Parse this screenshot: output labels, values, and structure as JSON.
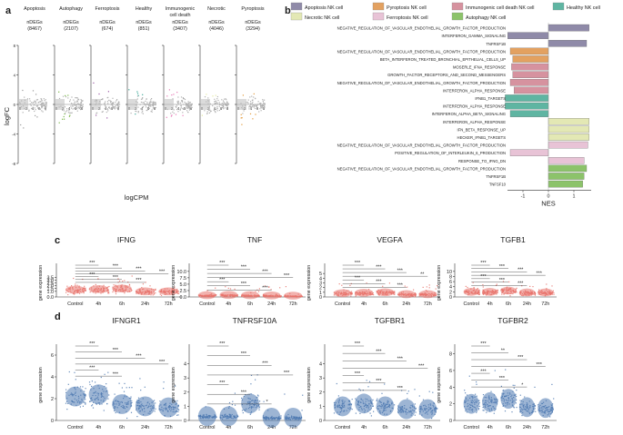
{
  "panels": {
    "a": "a",
    "b": "b",
    "c": "c",
    "d": "d"
  },
  "panel_a": {
    "ylabel": "logFC",
    "xlabel": "logCPM",
    "groups": [
      {
        "title": "Apoptosis",
        "title2": "",
        "ndegs_label": "nDEGs",
        "count": "(8467)",
        "color": "#9a9a9a"
      },
      {
        "title": "Autophagy",
        "title2": "",
        "ndegs_label": "nDEGs",
        "count": "(2107)",
        "color": "#7ab648"
      },
      {
        "title": "Ferroptosis",
        "title2": "",
        "ndegs_label": "nDEGs",
        "count": "(674)",
        "color": "#9b5aa5"
      },
      {
        "title": "Healthy",
        "title2": "",
        "ndegs_label": "nDEGs",
        "count": "(851)",
        "color": "#3fa99a"
      },
      {
        "title": "Immunogenic",
        "title2": "cell death",
        "ndegs_label": "nDEGs",
        "count": "(3407)",
        "color": "#e87bb7"
      },
      {
        "title": "Necrotic",
        "title2": "",
        "ndegs_label": "nDEGs",
        "count": "(4046)",
        "color": "#e3e8a0"
      },
      {
        "title": "Pyroptosis",
        "title2": "",
        "ndegs_label": "nDEGs",
        "count": "(3294)",
        "color": "#e39a3a"
      }
    ],
    "y_ticks": [
      "8",
      "4",
      "0",
      "-4",
      "-8"
    ],
    "x_ticks": [
      "0",
      "2",
      "4",
      "6",
      "8"
    ]
  },
  "chart_data": [
    {
      "type": "bar",
      "id": "b",
      "orientation": "horizontal",
      "xlabel": "NES",
      "x_ticks": [
        "-1",
        "0",
        "1"
      ],
      "xlim": [
        -1.8,
        1.8
      ],
      "legend": [
        {
          "name": "Apoptosis NK cell",
          "color": "#8f8aa8"
        },
        {
          "name": "Pyroptosis NK cell",
          "color": "#e3a160"
        },
        {
          "name": "Immunogenic cell death NK cell",
          "color": "#d6929f"
        },
        {
          "name": "Healthy NK cell",
          "color": "#5fb5a2"
        },
        {
          "name": "Necrotic NK cell",
          "color": "#e3e8b4"
        },
        {
          "name": "Ferroptosis NK cell",
          "color": "#e8c3d6"
        },
        {
          "name": "Autophagy NK cell",
          "color": "#8cc36a"
        }
      ],
      "categories": [
        "NEGATIVE_REGULATION_OF_VASCULAR_ENDOTHELIAL_GROWTH_FACTOR_PRODUCTION",
        "INTERFERON_GAMMA_SIGNALING",
        "TNFRSF1B",
        "NEGATIVE_REGULATION_OF_VASCULAR_ENDOTHELIAL_GROWTH_FACTOR_PRODUCTION",
        "BETA_INTERFERON_TREATED_BRONCHIAL_EPITHELIAL_CELLS_UP",
        "MOSERLE_IFNA_RESPONSE",
        "GROWTH_FACTOR_RECEPTORS_AND_SECOND_MESSENGERS",
        "NEGATIVE_REGULATION_OF_VASCULAR_ENDOTHELIAL_GROWTH_FACTOR_PRODUCTION",
        "INTERFERON_ALPHA_RESPONSE",
        "IFNB1_TARGETS",
        "INTERFERON_ALPHA_RESPONSE",
        "INTERFERON_ALPHA_BETA_SIGNALING",
        "INTERFERON_ALPHA_RESPONSE",
        "IFN_BETA_RESPONSE_UP",
        "HECKER_IFNB1_TARGETS",
        "NEGATIVE_REGULATION_OF_VASCULAR_ENDOTHELIAL_GROWTH_FACTOR_PRODUCTION",
        "POSITIVE_REGULATION_OF_INTERLEUKIN_6_PRODUCTION",
        "RESPONSE_TO_IFNG_DN",
        "NEGATIVE_REGULATION_OF_VASCULAR_ENDOTHELIAL_GROWTH_FACTOR_PRODUCTION",
        "TNFRSF1B",
        "TNFSF10"
      ],
      "values": [
        1.6,
        -1.6,
        1.5,
        -1.5,
        -1.4,
        -1.45,
        -1.4,
        -1.5,
        -1.35,
        -1.7,
        -1.7,
        -1.5,
        1.6,
        1.6,
        1.6,
        1.55,
        -1.5,
        1.4,
        1.5,
        1.4,
        1.35
      ],
      "groups": [
        0,
        0,
        0,
        1,
        1,
        2,
        2,
        2,
        2,
        3,
        3,
        3,
        4,
        4,
        4,
        5,
        5,
        5,
        6,
        6,
        6
      ]
    },
    {
      "type": "violin",
      "id": "c",
      "ylabel": "gene expression",
      "categories": [
        "Control",
        "4h",
        "6h",
        "24h",
        "72h"
      ],
      "color": "#e8736b",
      "significance": "***",
      "genes": [
        {
          "name": "IFNG",
          "ylim": [
            0,
            5
          ],
          "yticks": [
            "0.0",
            "1.0",
            "1.5",
            "2.0",
            "2.5",
            "3.0",
            "3.5"
          ],
          "medians": [
            1.3,
            1.4,
            1.5,
            1.0,
            1.0
          ],
          "sig": [
            "***",
            "***",
            "***",
            "***",
            "***",
            "***",
            "***"
          ]
        },
        {
          "name": "TNF",
          "ylim": [
            0,
            11
          ],
          "yticks": [
            "0.0",
            "2.5",
            "5.0",
            "7.5",
            "10.0"
          ],
          "medians": [
            0.7,
            0.8,
            0.7,
            0.6,
            0.5
          ],
          "sig": [
            "***",
            "***",
            "***",
            "***",
            "***",
            "***",
            "***"
          ]
        },
        {
          "name": "VEGFA",
          "ylim": [
            0,
            6
          ],
          "yticks": [
            "0",
            "1",
            "2",
            "3",
            "4",
            "5"
          ],
          "medians": [
            0.8,
            0.9,
            1.0,
            0.6,
            0.6
          ],
          "sig": [
            "***",
            "***",
            "***",
            "**",
            "***",
            "***",
            "***"
          ]
        },
        {
          "name": "TGFB1",
          "ylim": [
            0,
            11
          ],
          "yticks": [
            "0",
            "2",
            "4",
            "6",
            "8",
            "10"
          ],
          "medians": [
            2.0,
            2.0,
            2.5,
            1.8,
            1.8
          ],
          "sig": [
            "***",
            "***",
            "***",
            "***",
            "***",
            "***",
            "***"
          ]
        }
      ]
    },
    {
      "type": "violin",
      "id": "d",
      "ylabel": "gene expression",
      "categories": [
        "Control",
        "4h",
        "6h",
        "24h",
        "72h"
      ],
      "color": "#4d79b0",
      "genes": [
        {
          "name": "IFNGR1",
          "ylim": [
            0,
            6.5
          ],
          "yticks": [
            "0",
            "2",
            "4",
            "6"
          ],
          "medians": [
            2.2,
            2.4,
            1.5,
            1.3,
            1.2
          ],
          "sig": [
            "***",
            "***",
            "***",
            "***",
            "***",
            "***"
          ]
        },
        {
          "name": "TNFRSF10A",
          "ylim": [
            0,
            5
          ],
          "yticks": [
            "0",
            "1",
            "2",
            "3",
            "4"
          ],
          "medians": [
            0.3,
            0.3,
            1.2,
            0.2,
            0.2
          ],
          "sig": [
            "***",
            "***",
            "***",
            "***",
            "***",
            "***",
            "*"
          ]
        },
        {
          "name": "TGFBR1",
          "ylim": [
            0,
            5
          ],
          "yticks": [
            "0",
            "1",
            "2",
            "3",
            "4"
          ],
          "medians": [
            1.0,
            1.2,
            1.0,
            0.8,
            0.8
          ],
          "sig": [
            "***",
            "***",
            "***",
            "***",
            "***",
            "***",
            "***"
          ]
        },
        {
          "name": "TGFBR2",
          "ylim": [
            0,
            8.5
          ],
          "yticks": [
            "0",
            "2",
            "4",
            "6",
            "8"
          ],
          "medians": [
            2.0,
            2.2,
            2.6,
            1.6,
            1.5
          ],
          "sig": [
            "***",
            "**",
            "***",
            "***",
            "***",
            "***",
            "*"
          ]
        }
      ]
    }
  ]
}
